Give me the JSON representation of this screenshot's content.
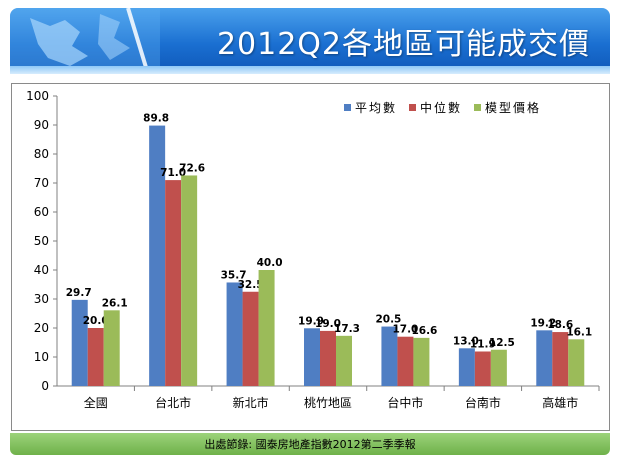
{
  "header": {
    "title": "2012Q2各地區可能成交價"
  },
  "footer": {
    "source": "出處節錄: 國泰房地產指數2012第二季季報"
  },
  "chart_data": {
    "type": "bar",
    "title": "",
    "xlabel": "",
    "ylabel": "",
    "ylim": [
      0,
      100
    ],
    "yticks": [
      0,
      10,
      20,
      30,
      40,
      50,
      60,
      70,
      80,
      90,
      100
    ],
    "grid": false,
    "legend": "top-right",
    "categories": [
      "全國",
      "台北市",
      "新北市",
      "桃竹地區",
      "台中市",
      "台南市",
      "高雄市"
    ],
    "series": [
      {
        "name": "平均數",
        "color": "#4f7ec3",
        "values": [
          29.7,
          89.8,
          35.7,
          19.9,
          20.5,
          13.0,
          19.2
        ]
      },
      {
        "name": "中位數",
        "color": "#c0504d",
        "values": [
          20.0,
          71.0,
          32.5,
          19.0,
          17.0,
          11.9,
          18.6
        ]
      },
      {
        "name": "模型價格",
        "color": "#9bbb59",
        "values": [
          26.1,
          72.6,
          40.0,
          17.3,
          16.6,
          12.5,
          16.1
        ]
      }
    ]
  }
}
